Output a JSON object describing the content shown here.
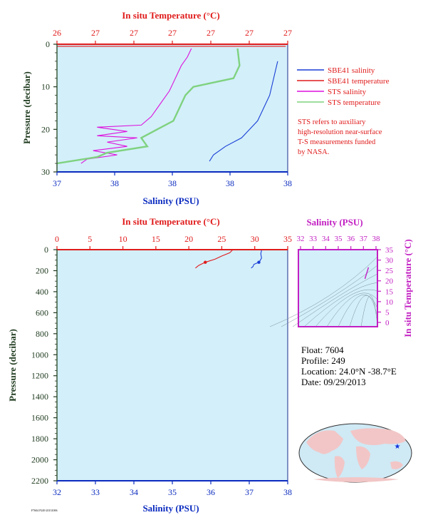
{
  "colors": {
    "plot_bg": "#d3effa",
    "salinity_axis": "#0b2bbf",
    "temperature_axis": "#e01b1b",
    "pressure_axis": "#3b5a3b",
    "sbe_salinity": "#1a3fd6",
    "sbe_temperature": "#e01b1b",
    "sts_salinity": "#dd11dd",
    "sts_temperature": "#7fd27f",
    "ts_axis": "#c21fc2",
    "map_land": "#f2c6c6",
    "map_ocean": "#cfe9f5",
    "float_marker": "#1133dd"
  },
  "top_chart": {
    "top_axis_title": "In situ Temperature (°C)",
    "top_ticks": [
      "26",
      "27",
      "27",
      "27",
      "27",
      "27",
      "27"
    ],
    "bottom_axis_title": "Salinity (PSU)",
    "bottom_ticks": [
      "37",
      "38",
      "38",
      "38",
      "38"
    ],
    "y_axis_title": "Pressure (decibar)",
    "y_ticks": [
      "0",
      "10",
      "20",
      "30"
    ],
    "legend": [
      {
        "label": "SBE41 salinity",
        "color_key": "sbe_salinity"
      },
      {
        "label": "SBE41 temperature",
        "color_key": "sbe_temperature"
      },
      {
        "label": "STS salinity",
        "color_key": "sts_salinity"
      },
      {
        "label": "STS temperature",
        "color_key": "sts_temperature"
      }
    ],
    "note_lines": [
      "STS refers to auxiliary",
      "high-resolution near-surface",
      "T-S measurements funded",
      "by NASA."
    ]
  },
  "bottom_chart": {
    "top_axis_title": "In situ Temperature (°C)",
    "top_ticks": [
      "0",
      "5",
      "10",
      "15",
      "20",
      "25",
      "30",
      "35"
    ],
    "bottom_axis_title": "Salinity (PSU)",
    "bottom_ticks": [
      "32",
      "33",
      "34",
      "35",
      "36",
      "37",
      "38"
    ],
    "y_axis_title": "Pressure (decibar)",
    "y_ticks": [
      "0",
      "200",
      "400",
      "600",
      "800",
      "1000",
      "1200",
      "1400",
      "1600",
      "1800",
      "2000",
      "2200"
    ]
  },
  "ts_diagram": {
    "x_axis_title": "Salinity (PSU)",
    "x_ticks": [
      "32",
      "33",
      "34",
      "35",
      "36",
      "37",
      "38"
    ],
    "y_axis_title": "In situ Temperature (°C)",
    "y_ticks": [
      "0",
      "5",
      "10",
      "15",
      "20",
      "25",
      "30",
      "35"
    ]
  },
  "float_info": {
    "float": "Float:  7604",
    "profile": "Profile:  249",
    "location": "Location:  24.0°N  -38.7°E",
    "date": "Date:  09/29/2013"
  },
  "footer_code": "F7604 P249 20131006",
  "chart_data": [
    {
      "type": "line",
      "title": "",
      "xlabel": "Salinity (PSU)",
      "x2label": "In situ Temperature (°C)",
      "ylabel": "Pressure (decibar)",
      "y_inverted": true,
      "ylim": [
        0,
        30
      ],
      "xlim": [
        37.2,
        38.35
      ],
      "x2lim": [
        26.3,
        27.45
      ],
      "series": [
        {
          "name": "SBE41 salinity",
          "axis": "salinity",
          "color_key": "sbe_salinity",
          "points": [
            [
              38.3,
              4
            ],
            [
              38.29,
              6
            ],
            [
              38.28,
              8
            ],
            [
              38.27,
              10
            ],
            [
              38.26,
              12
            ],
            [
              38.24,
              14
            ],
            [
              38.22,
              16
            ],
            [
              38.2,
              18
            ],
            [
              38.16,
              20
            ],
            [
              38.12,
              22
            ],
            [
              38.04,
              24
            ],
            [
              37.98,
              26
            ],
            [
              37.96,
              27.5
            ]
          ]
        },
        {
          "name": "SBE41 temperature",
          "axis": "temperature",
          "color_key": "sbe_temperature",
          "points": [
            [
              27.44,
              0.5
            ],
            [
              26.3,
              0.5
            ]
          ]
        },
        {
          "name": "STS salinity",
          "axis": "salinity",
          "color_key": "sts_salinity",
          "points": [
            [
              37.87,
              1
            ],
            [
              37.85,
              3
            ],
            [
              37.82,
              5
            ],
            [
              37.8,
              7
            ],
            [
              37.78,
              9
            ],
            [
              37.76,
              11
            ],
            [
              37.73,
              13
            ],
            [
              37.7,
              15
            ],
            [
              37.67,
              17
            ],
            [
              37.62,
              19
            ],
            [
              37.4,
              19.5
            ],
            [
              37.55,
              20.5
            ],
            [
              37.4,
              21.5
            ],
            [
              37.6,
              22
            ],
            [
              37.45,
              23
            ],
            [
              37.55,
              24
            ],
            [
              37.38,
              25
            ],
            [
              37.5,
              26
            ],
            [
              37.35,
              27
            ],
            [
              37.32,
              28
            ]
          ]
        },
        {
          "name": "STS temperature",
          "axis": "temperature",
          "color_key": "sts_temperature",
          "points": [
            [
              27.2,
              1
            ],
            [
              27.21,
              5
            ],
            [
              27.18,
              8
            ],
            [
              27.08,
              9
            ],
            [
              26.98,
              10
            ],
            [
              26.94,
              12
            ],
            [
              26.92,
              14
            ],
            [
              26.9,
              16
            ],
            [
              26.88,
              18
            ],
            [
              26.8,
              20
            ],
            [
              26.72,
              22
            ],
            [
              26.75,
              24
            ],
            [
              26.55,
              25.5
            ],
            [
              26.5,
              26.5
            ],
            [
              26.3,
              28
            ]
          ]
        }
      ]
    },
    {
      "type": "line",
      "title": "",
      "xlabel": "Salinity (PSU)",
      "x2label": "In situ Temperature (°C)",
      "ylabel": "Pressure (decibar)",
      "y_inverted": true,
      "ylim": [
        0,
        2200
      ],
      "xlim": [
        32,
        38
      ],
      "x2lim": [
        0,
        35
      ],
      "series": [
        {
          "name": "SBE41 salinity",
          "axis": "salinity",
          "color_key": "sbe_salinity",
          "points": [
            [
              37.32,
              5
            ],
            [
              37.3,
              40
            ],
            [
              37.32,
              80
            ],
            [
              37.28,
              105
            ],
            [
              37.25,
              120
            ],
            [
              37.12,
              140
            ],
            [
              37.1,
              160
            ],
            [
              37.05,
              175
            ]
          ]
        },
        {
          "name": "SBE41 temperature",
          "axis": "temperature",
          "color_key": "sbe_temperature",
          "points": [
            [
              26.6,
              5
            ],
            [
              26.2,
              30
            ],
            [
              25.0,
              60
            ],
            [
              24.0,
              90
            ],
            [
              22.5,
              120
            ],
            [
              21.5,
              150
            ],
            [
              21.0,
              175
            ]
          ]
        }
      ]
    },
    {
      "type": "line",
      "title": "",
      "xlabel": "Salinity (PSU)",
      "ylabel": "In situ Temperature (°C)",
      "xlim": [
        32,
        38
      ],
      "ylim": [
        -2,
        35
      ],
      "series": [
        {
          "name": "SBE41 salinity",
          "color_key": "ts_axis",
          "points": [
            [
              37.05,
              21
            ],
            [
              37.15,
              23
            ],
            [
              37.25,
              25
            ],
            [
              37.32,
              26.5
            ]
          ]
        }
      ]
    }
  ]
}
